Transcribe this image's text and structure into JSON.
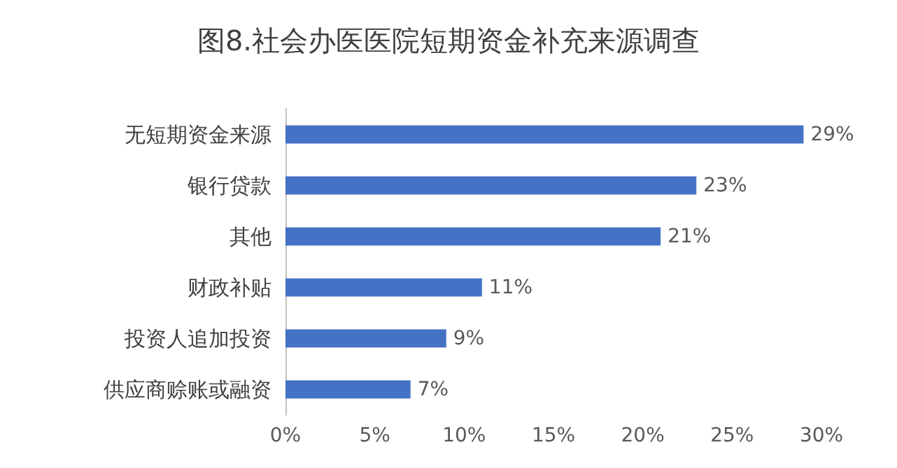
{
  "chart_data": {
    "type": "bar",
    "orientation": "horizontal",
    "title": "图8.社会办医医院短期资金补充来源调查",
    "categories": [
      "无短期资金来源",
      "银行贷款",
      "其他",
      "财政补贴",
      "投资人追加投资",
      "供应商赊账或融资"
    ],
    "values": [
      29,
      23,
      21,
      11,
      9,
      7
    ],
    "value_labels": [
      "29%",
      "23%",
      "21%",
      "11%",
      "9%",
      "7%"
    ],
    "color": "#4472c4",
    "xlim": [
      0,
      30
    ],
    "xticks": [
      {
        "value": 0,
        "label": "0%"
      },
      {
        "value": 5,
        "label": "5%"
      },
      {
        "value": 10,
        "label": "10%"
      },
      {
        "value": 15,
        "label": "15%"
      },
      {
        "value": 20,
        "label": "20%"
      },
      {
        "value": 25,
        "label": "25%"
      },
      {
        "value": 30,
        "label": "30%"
      }
    ],
    "grid": false
  }
}
